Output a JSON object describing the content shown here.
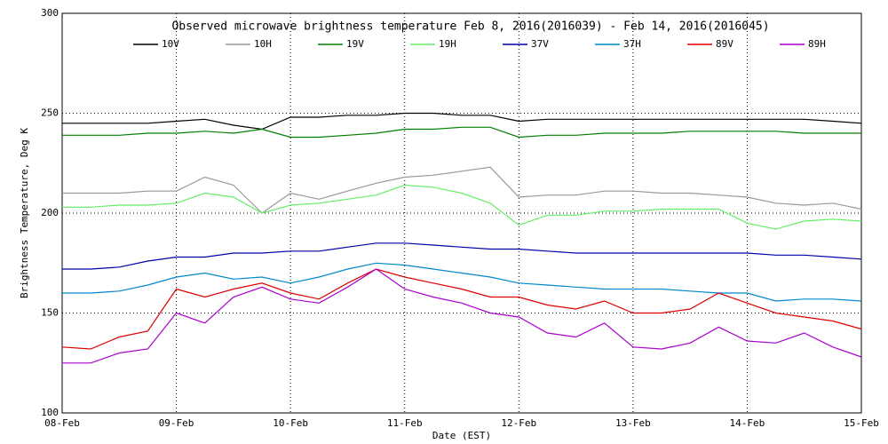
{
  "chart_data": {
    "type": "line",
    "title": "Observed microwave brightness temperature Feb  8, 2016(2016039) - Feb 14, 2016(2016045)",
    "x_label": "Date (EST)",
    "y_label": "Brightness Temperature, Deg K",
    "x": [
      0,
      0.25,
      0.5,
      0.75,
      1,
      1.25,
      1.5,
      1.75,
      2,
      2.25,
      2.5,
      2.75,
      3,
      3.25,
      3.5,
      3.75,
      4,
      4.25,
      4.5,
      4.75,
      5,
      5.25,
      5.5,
      5.75,
      6,
      6.25,
      6.5,
      6.75,
      7
    ],
    "xlim": [
      0,
      7
    ],
    "xticks": [
      {
        "value": 0,
        "label": "08-Feb"
      },
      {
        "value": 1,
        "label": "09-Feb"
      },
      {
        "value": 2,
        "label": "10-Feb"
      },
      {
        "value": 3,
        "label": "11-Feb"
      },
      {
        "value": 4,
        "label": "12-Feb"
      },
      {
        "value": 5,
        "label": "13-Feb"
      },
      {
        "value": 6,
        "label": "14-Feb"
      },
      {
        "value": 7,
        "label": "15-Feb"
      }
    ],
    "ylim": [
      100,
      300
    ],
    "yticks": [
      100,
      150,
      200,
      250,
      300
    ],
    "grid": true,
    "series": [
      {
        "name": "10V",
        "color": "#000000",
        "values": [
          245,
          245,
          245,
          245,
          246,
          247,
          244,
          242,
          248,
          248,
          249,
          249,
          250,
          250,
          249,
          249,
          246,
          247,
          247,
          247,
          247,
          247,
          247,
          247,
          247,
          247,
          247,
          246,
          245
        ]
      },
      {
        "name": "10H",
        "color": "#999999",
        "values": [
          210,
          210,
          210,
          211,
          211,
          218,
          214,
          200,
          210,
          207,
          211,
          215,
          218,
          219,
          221,
          223,
          208,
          209,
          209,
          211,
          211,
          210,
          210,
          209,
          208,
          205,
          204,
          205,
          202
        ]
      },
      {
        "name": "19V",
        "color": "#008000",
        "values": [
          239,
          239,
          239,
          240,
          240,
          241,
          240,
          242,
          238,
          238,
          239,
          240,
          242,
          242,
          243,
          243,
          238,
          239,
          239,
          240,
          240,
          240,
          241,
          241,
          241,
          241,
          240,
          240,
          240
        ]
      },
      {
        "name": "19H",
        "color": "#66ee66",
        "values": [
          203,
          203,
          204,
          204,
          205,
          210,
          208,
          200,
          204,
          205,
          207,
          209,
          214,
          213,
          210,
          205,
          194,
          199,
          199,
          201,
          201,
          202,
          202,
          202,
          195,
          192,
          196,
          197,
          196
        ]
      },
      {
        "name": "37V",
        "color": "#0000aa",
        "values": [
          172,
          172,
          173,
          176,
          178,
          178,
          180,
          180,
          181,
          181,
          183,
          185,
          185,
          184,
          183,
          182,
          182,
          181,
          180,
          180,
          180,
          180,
          180,
          180,
          180,
          179,
          179,
          178,
          177
        ]
      },
      {
        "name": "37H",
        "color": "#0088cc",
        "values": [
          160,
          160,
          161,
          164,
          168,
          170,
          167,
          168,
          165,
          168,
          172,
          175,
          174,
          172,
          170,
          168,
          165,
          164,
          163,
          162,
          162,
          162,
          161,
          160,
          160,
          156,
          157,
          157,
          156
        ]
      },
      {
        "name": "89V",
        "color": "#dd0000",
        "values": [
          133,
          132,
          138,
          141,
          162,
          158,
          162,
          165,
          160,
          157,
          165,
          172,
          168,
          165,
          162,
          158,
          158,
          154,
          152,
          156,
          150,
          150,
          152,
          160,
          155,
          150,
          148,
          146,
          142
        ]
      },
      {
        "name": "89H",
        "color": "#aa00cc",
        "values": [
          125,
          125,
          130,
          132,
          150,
          145,
          158,
          163,
          157,
          155,
          163,
          172,
          162,
          158,
          155,
          150,
          148,
          140,
          138,
          145,
          133,
          132,
          135,
          143,
          136,
          135,
          140,
          133,
          128
        ]
      }
    ]
  }
}
